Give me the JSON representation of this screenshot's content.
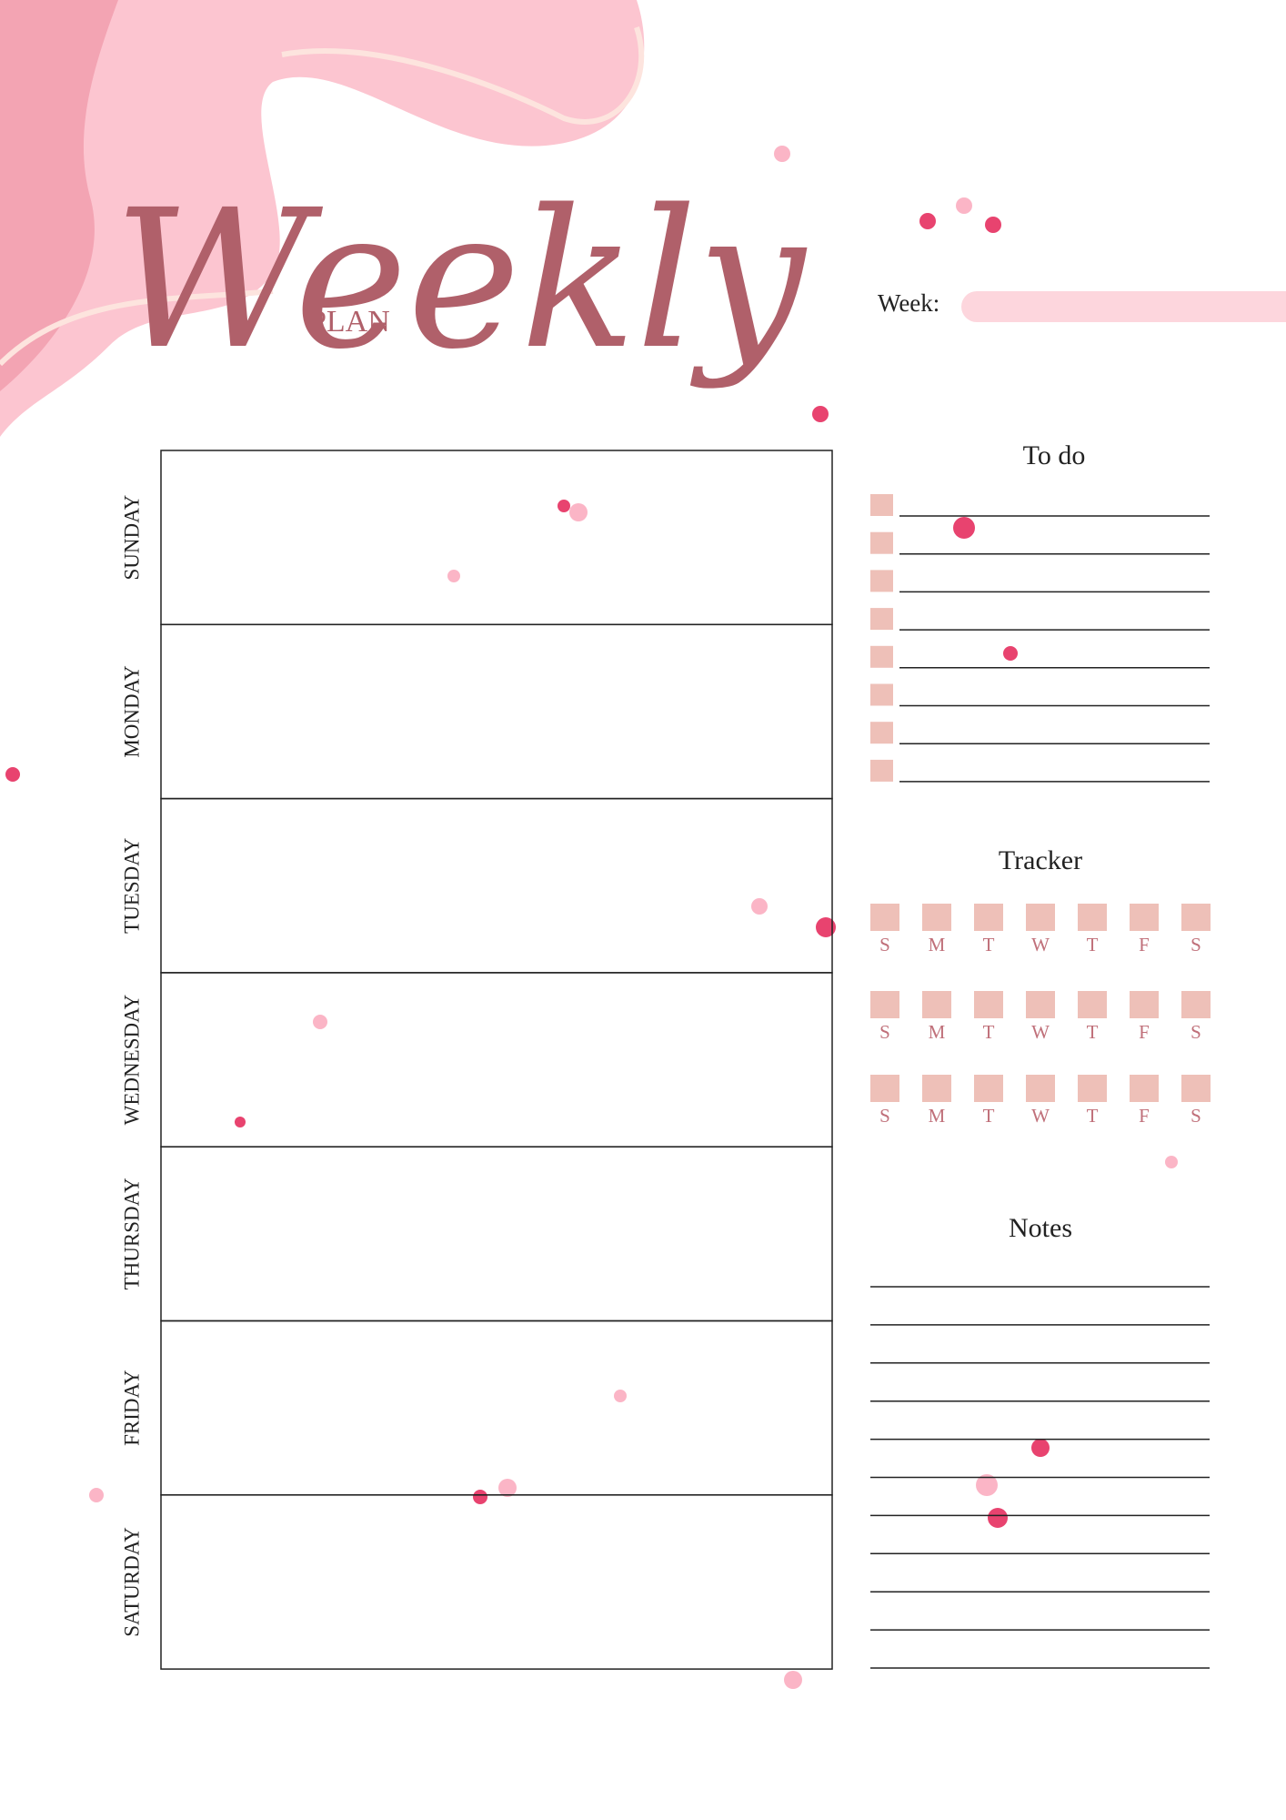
{
  "header": {
    "title": "Weekly",
    "subtitle": "PLAN",
    "week_label": "Week:"
  },
  "days": [
    "SUNDAY",
    "MONDAY",
    "TUESDAY",
    "WEDNESDAY",
    "THURSDAY",
    "FRIDAY",
    "SATURDAY"
  ],
  "todo": {
    "title": "To do"
  },
  "tracker": {
    "title": "Tracker",
    "rows": [
      [
        "S",
        "M",
        "T",
        "W",
        "T",
        "F",
        "S"
      ],
      [
        "S",
        "M",
        "T",
        "W",
        "T",
        "F",
        "S"
      ],
      [
        "S",
        "M",
        "T",
        "W",
        "T",
        "F",
        "S"
      ]
    ]
  },
  "notes": {
    "title": "Notes"
  }
}
